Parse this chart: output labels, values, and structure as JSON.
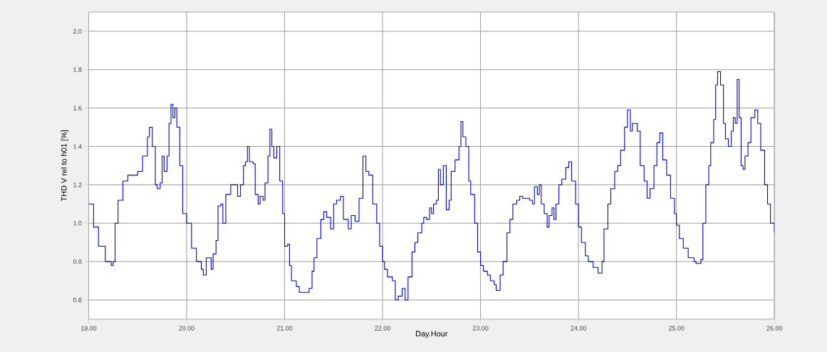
{
  "chart_data": {
    "type": "step",
    "xlabel": "Day.Hour",
    "ylabel": "THD V rel to h01 [%]",
    "xlim": [
      19,
      26
    ],
    "ylim": [
      0.5,
      2.1
    ],
    "xticks": [
      {
        "value": 19,
        "label": "19.00"
      },
      {
        "value": 20,
        "label": "20.00"
      },
      {
        "value": 21,
        "label": "21.00"
      },
      {
        "value": 22,
        "label": "22.00"
      },
      {
        "value": 23,
        "label": "23.00"
      },
      {
        "value": 24,
        "label": "24.00"
      },
      {
        "value": 25,
        "label": "25.00"
      },
      {
        "value": 26,
        "label": "26.00"
      }
    ],
    "yticks": [
      0.6,
      0.8,
      {
        "value": 1,
        "label": "1.0"
      },
      1.2,
      1.4,
      1.6,
      1.8,
      {
        "value": 2,
        "label": "2.0"
      }
    ],
    "grid": true,
    "line_style": "solid",
    "series": [
      {
        "color": "#0000cc",
        "x": [
          19.0,
          19.05,
          19.1,
          19.17,
          19.23,
          19.25,
          19.27,
          19.3,
          19.35,
          19.4,
          19.5,
          19.55,
          19.6,
          19.62,
          19.65,
          19.68,
          19.7,
          19.73,
          19.75,
          19.77,
          19.8,
          19.82,
          19.84,
          19.86,
          19.88,
          19.9,
          19.93,
          19.96,
          20.0,
          20.05,
          20.1,
          20.15,
          20.17,
          20.2,
          20.25,
          20.27,
          20.3,
          20.32,
          20.35,
          20.37,
          20.4,
          20.45,
          20.5,
          20.52,
          20.55,
          20.58,
          20.6,
          20.62,
          20.64,
          20.68,
          20.7,
          20.73,
          20.75,
          20.78,
          20.8,
          20.83,
          20.85,
          20.87,
          20.89,
          20.92,
          20.95,
          20.98,
          21.0,
          21.03,
          21.05,
          21.07,
          21.12,
          21.15,
          21.2,
          21.25,
          21.28,
          21.3,
          21.33,
          21.37,
          21.4,
          21.43,
          21.47,
          21.5,
          21.53,
          21.57,
          21.6,
          21.65,
          21.68,
          21.72,
          21.76,
          21.8,
          21.83,
          21.86,
          21.9,
          21.94,
          21.97,
          22.0,
          22.02,
          22.05,
          22.1,
          22.13,
          22.16,
          22.2,
          22.23,
          22.26,
          22.3,
          22.33,
          22.36,
          22.4,
          22.42,
          22.45,
          22.48,
          22.5,
          22.52,
          22.55,
          22.57,
          22.59,
          22.62,
          22.65,
          22.68,
          22.7,
          22.74,
          22.78,
          22.8,
          22.82,
          22.85,
          22.88,
          22.9,
          22.94,
          22.97,
          23.0,
          23.03,
          23.07,
          23.1,
          23.14,
          23.16,
          23.2,
          23.23,
          23.27,
          23.3,
          23.33,
          23.37,
          23.4,
          23.43,
          23.5,
          23.53,
          23.55,
          23.58,
          23.6,
          23.62,
          23.65,
          23.68,
          23.7,
          23.73,
          23.75,
          23.77,
          23.8,
          23.83,
          23.87,
          23.9,
          23.93,
          23.97,
          24.0,
          24.03,
          24.07,
          24.1,
          24.15,
          24.2,
          24.24,
          24.26,
          24.3,
          24.33,
          24.37,
          24.4,
          24.43,
          24.47,
          24.5,
          24.53,
          24.55,
          24.6,
          24.63,
          24.67,
          24.7,
          24.73,
          24.77,
          24.8,
          24.83,
          24.86,
          24.9,
          24.94,
          24.98,
          25.0,
          25.03,
          25.07,
          25.12,
          25.18,
          25.2,
          25.25,
          25.27,
          25.3,
          25.33,
          25.35,
          25.38,
          25.4,
          25.42,
          25.45,
          25.48,
          25.5,
          25.53,
          25.56,
          25.58,
          25.6,
          25.62,
          25.64,
          25.66,
          25.68,
          25.7,
          25.73,
          25.76,
          25.8,
          25.83,
          25.86,
          25.9,
          25.93,
          25.96,
          26.0
        ],
        "values": [
          1.1,
          0.98,
          0.88,
          0.8,
          0.78,
          0.8,
          1.0,
          1.12,
          1.22,
          1.25,
          1.27,
          1.35,
          1.45,
          1.5,
          1.4,
          1.2,
          1.18,
          1.21,
          1.35,
          1.27,
          1.35,
          1.52,
          1.62,
          1.55,
          1.6,
          1.5,
          1.3,
          1.05,
          1.0,
          0.87,
          0.8,
          0.76,
          0.73,
          0.82,
          0.76,
          0.84,
          0.91,
          1.09,
          1.1,
          1.0,
          1.15,
          1.2,
          1.2,
          1.14,
          1.2,
          1.3,
          1.32,
          1.4,
          1.32,
          1.31,
          1.15,
          1.1,
          1.14,
          1.12,
          1.21,
          1.35,
          1.49,
          1.4,
          1.34,
          1.4,
          1.22,
          1.05,
          0.88,
          0.89,
          0.78,
          0.7,
          0.67,
          0.64,
          0.64,
          0.66,
          0.75,
          0.82,
          0.92,
          1.02,
          1.06,
          1.03,
          0.97,
          1.1,
          1.12,
          1.14,
          1.02,
          0.97,
          1.04,
          1.01,
          1.13,
          1.35,
          1.27,
          1.25,
          1.1,
          1.0,
          0.88,
          0.8,
          0.76,
          0.72,
          0.7,
          0.6,
          0.62,
          0.66,
          0.6,
          0.72,
          0.85,
          0.9,
          0.95,
          1.0,
          1.03,
          1.02,
          1.08,
          1.05,
          1.1,
          1.12,
          1.28,
          1.2,
          1.3,
          1.07,
          1.12,
          1.27,
          1.33,
          1.4,
          1.53,
          1.45,
          1.4,
          1.22,
          1.15,
          1.0,
          0.85,
          0.78,
          0.75,
          0.73,
          0.7,
          0.68,
          0.65,
          0.73,
          0.8,
          0.95,
          1.02,
          1.1,
          1.12,
          1.14,
          1.13,
          1.12,
          1.1,
          1.19,
          1.15,
          1.2,
          1.1,
          1.05,
          0.98,
          1.04,
          1.08,
          1.02,
          1.1,
          1.2,
          1.23,
          1.29,
          1.32,
          1.22,
          1.1,
          0.98,
          0.9,
          0.83,
          0.8,
          0.77,
          0.74,
          0.8,
          0.97,
          1.1,
          1.18,
          1.27,
          1.3,
          1.38,
          1.5,
          1.59,
          1.48,
          1.52,
          1.48,
          1.3,
          1.22,
          1.13,
          1.18,
          1.3,
          1.42,
          1.47,
          1.33,
          1.25,
          1.13,
          1.05,
          0.99,
          0.92,
          0.87,
          0.82,
          0.8,
          0.79,
          0.81,
          1.0,
          1.2,
          1.3,
          1.42,
          1.54,
          1.72,
          1.79,
          1.72,
          1.52,
          1.44,
          1.4,
          1.48,
          1.55,
          1.52,
          1.75,
          1.55,
          1.3,
          1.28,
          1.35,
          1.42,
          1.55,
          1.59,
          1.52,
          1.38,
          1.2,
          1.1,
          1.0,
          0.95
        ]
      }
    ]
  }
}
